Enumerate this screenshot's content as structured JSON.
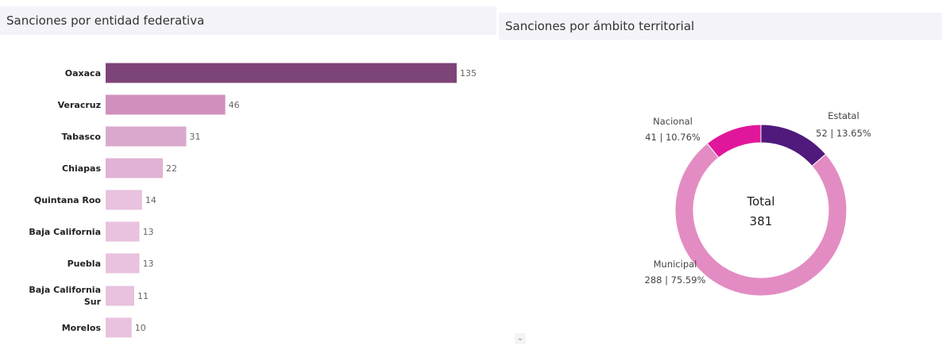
{
  "left_panel": {
    "title": "Sanciones por entidad federativa"
  },
  "right_panel": {
    "title": "Sanciones por ámbito territorial"
  },
  "chart_data": [
    {
      "type": "bar",
      "orientation": "horizontal",
      "categories": [
        "Oaxaca",
        "Veracruz",
        "Tabasco",
        "Chiapas",
        "Quintana Roo",
        "Baja California",
        "Puebla",
        "Baja California Sur",
        "Morelos"
      ],
      "category_lines": [
        [
          "Oaxaca"
        ],
        [
          "Veracruz"
        ],
        [
          "Tabasco"
        ],
        [
          "Chiapas"
        ],
        [
          "Quintana Roo"
        ],
        [
          "Baja California"
        ],
        [
          "Puebla"
        ],
        [
          "Baja California",
          "Sur"
        ],
        [
          "Morelos"
        ]
      ],
      "values": [
        135,
        46,
        31,
        22,
        14,
        13,
        13,
        11,
        10
      ],
      "title": "Sanciones por entidad federativa",
      "colors": [
        "#7d4478",
        "#d08fbd",
        "#dba8cd",
        "#e0b2d4",
        "#e8c2de",
        "#e8c2de",
        "#e8c2de",
        "#e8c2de",
        "#e8c2de"
      ],
      "grid": false
    },
    {
      "type": "pie",
      "donut": true,
      "title": "Sanciones por ámbito territorial",
      "slices": [
        {
          "label": "Estatal",
          "value": 52,
          "detail": "52 | 13.65%",
          "color": "#4f1a7c"
        },
        {
          "label": "Municipal",
          "value": 288,
          "detail": "288 | 75.59%",
          "color": "#e38cc3"
        },
        {
          "label": "Nacional",
          "value": 41,
          "detail": "41 | 10.76%",
          "color": "#e0179a"
        }
      ],
      "center_label": "Total",
      "center_value": "381"
    }
  ],
  "scroll_indicator": {
    "glyph": "⌄"
  }
}
